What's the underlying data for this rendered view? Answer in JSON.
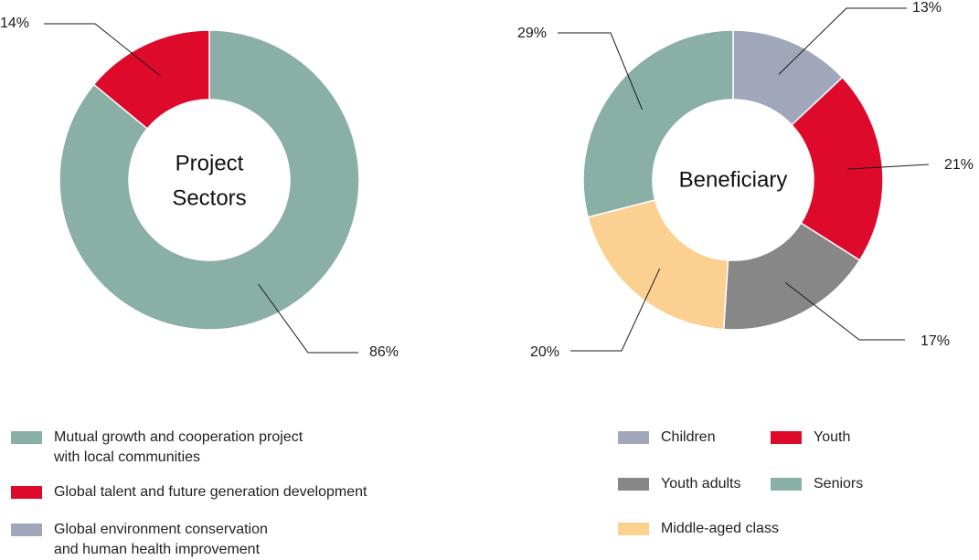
{
  "colors": {
    "teal": "#8aafa7",
    "red": "#dd0a2c",
    "lavender": "#a1a7ba",
    "gray": "#878787",
    "peach": "#fcd091"
  },
  "chart_data": [
    {
      "type": "pie",
      "title_lines": [
        "Project",
        "Sectors"
      ],
      "slices": [
        {
          "label": "Mutual growth and cooperation project with local communities",
          "value": 86,
          "value_label": "86%",
          "color": "#8aafa7"
        },
        {
          "label": "Global talent and future generation development",
          "value": 14,
          "value_label": "14%",
          "color": "#dd0a2c"
        }
      ]
    },
    {
      "type": "pie",
      "title_lines": [
        "Beneficiary"
      ],
      "slices": [
        {
          "label": "Children",
          "value": 13,
          "value_label": "13%",
          "color": "#a1a7ba"
        },
        {
          "label": "Youth",
          "value": 21,
          "value_label": "21%",
          "color": "#dd0a2c"
        },
        {
          "label": "Youth adults",
          "value": 17,
          "value_label": "17%",
          "color": "#878787"
        },
        {
          "label": "Middle-aged class",
          "value": 20,
          "value_label": "20%",
          "color": "#fcd091"
        },
        {
          "label": "Seniors",
          "value": 29,
          "value_label": "29%",
          "color": "#8aafa7"
        }
      ]
    }
  ],
  "legend_left": [
    {
      "lines": [
        "Mutual growth and cooperation project",
        "with local communities"
      ],
      "color": "#8aafa7"
    },
    {
      "lines": [
        "Global talent and future generation development"
      ],
      "color": "#dd0a2c"
    },
    {
      "lines": [
        "Global environment conservation",
        "and human health improvement"
      ],
      "color": "#a1a7ba"
    }
  ],
  "legend_right": [
    {
      "lines": [
        "Children"
      ],
      "color": "#a1a7ba"
    },
    {
      "lines": [
        "Youth"
      ],
      "color": "#dd0a2c"
    },
    {
      "lines": [
        "Youth adults"
      ],
      "color": "#878787"
    },
    {
      "lines": [
        "Seniors"
      ],
      "color": "#8aafa7"
    },
    {
      "lines": [
        "Middle-aged class"
      ],
      "color": "#fcd091"
    }
  ]
}
